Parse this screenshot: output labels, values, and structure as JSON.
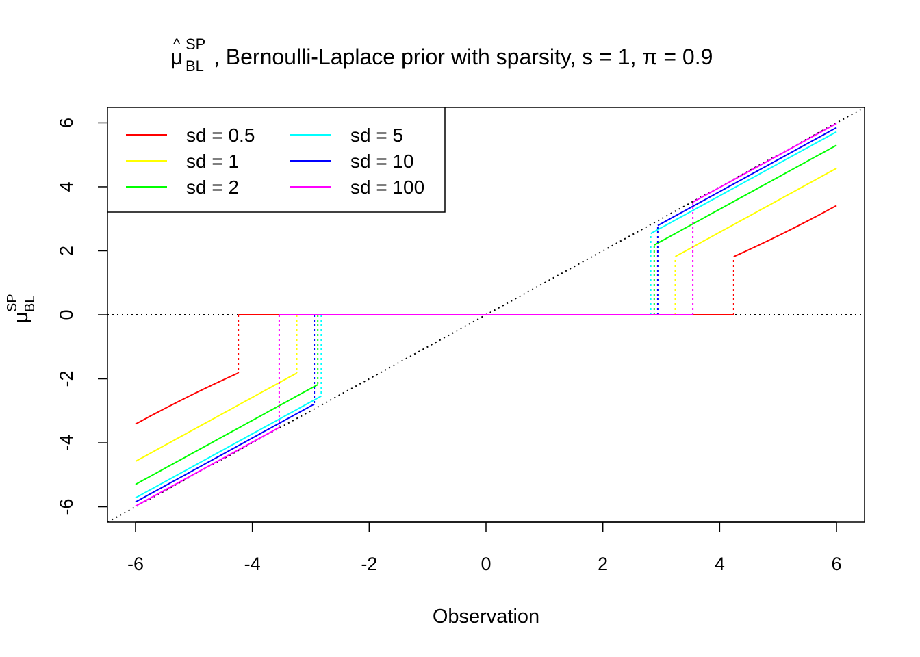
{
  "chart_data": {
    "type": "line",
    "title": {
      "prefix": "μ",
      "superscript": "SP",
      "subscript": "BL",
      "rest": ", Bernoulli-Laplace prior with sparsity, s = 1, π = 0.9"
    },
    "xlabel": "Observation",
    "ylabel": {
      "base": "μ",
      "superscript": "SP",
      "subscript": "BL"
    },
    "xlim": [
      -6.48,
      6.48
    ],
    "ylim": [
      -6.48,
      6.48
    ],
    "xticks": [
      -6,
      -4,
      -2,
      0,
      2,
      4,
      6
    ],
    "yticks": [
      -6,
      -4,
      -2,
      0,
      2,
      4,
      6
    ],
    "reference_lines": [
      {
        "type": "identity",
        "style": "dotted",
        "color": "#000000"
      },
      {
        "type": "horizontal",
        "y": 0,
        "style": "dotted",
        "color": "#000000"
      }
    ],
    "legend": {
      "position": "top-left",
      "columns": 2
    },
    "series": [
      {
        "name": "sd = 0.5",
        "color": "#FF0000",
        "threshold": 4.24,
        "slope": 0.82,
        "offset": 1.66,
        "curve": 0.05
      },
      {
        "name": "sd = 1",
        "color": "#FFFF00",
        "threshold": 3.24,
        "slope": 1.0,
        "offset": 1.42,
        "curve": 0
      },
      {
        "name": "sd = 2",
        "color": "#00FF00",
        "threshold": 2.88,
        "slope": 1.0,
        "offset": 0.7,
        "curve": 0
      },
      {
        "name": "sd = 5",
        "color": "#00FFFF",
        "threshold": 2.82,
        "slope": 1.0,
        "offset": 0.28,
        "curve": 0
      },
      {
        "name": "sd = 10",
        "color": "#0000FF",
        "threshold": 2.94,
        "slope": 1.0,
        "offset": 0.15,
        "curve": 0
      },
      {
        "name": "sd = 100",
        "color": "#FF00FF",
        "threshold": 3.54,
        "slope": 1.0,
        "offset": 0.02,
        "curve": 0
      }
    ],
    "x_range": [
      -6,
      6
    ]
  }
}
